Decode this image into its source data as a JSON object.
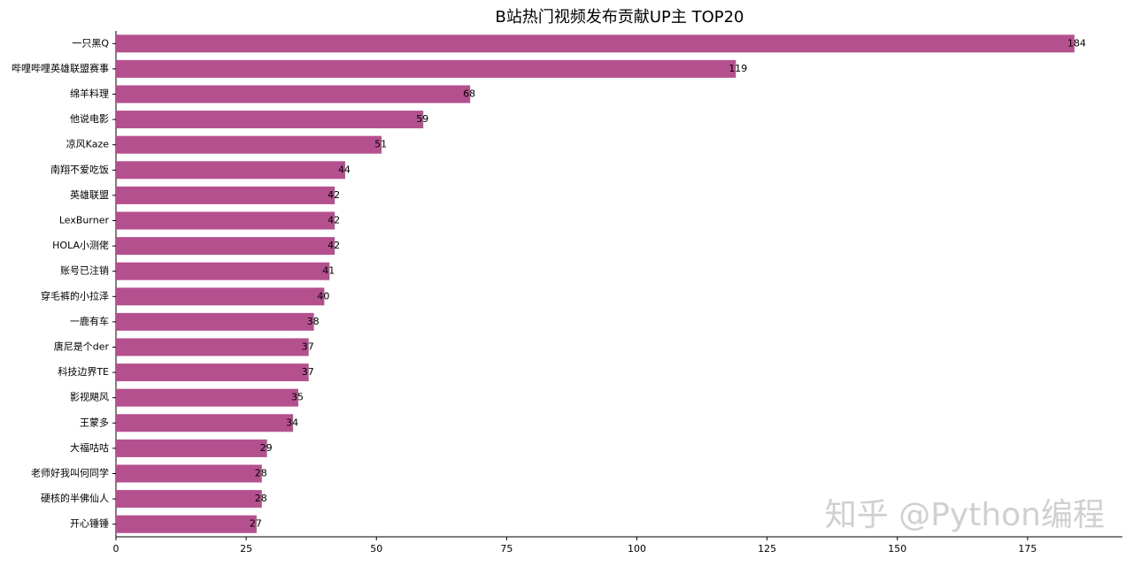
{
  "chart_data": {
    "type": "barh",
    "title": "B站热门视频发布贡献UP主 TOP20",
    "categories": [
      "一只黑Q",
      "哔哩哔哩英雄联盟赛事",
      "绵羊料理",
      "他说电影",
      "凉风Kaze",
      "南翔不爱吃饭",
      "英雄联盟",
      "LexBurner",
      "HOLA小测佬",
      "账号已注销",
      "穿毛裤的小拉泽",
      "一鹿有车",
      "唐尼是个der",
      "科技边界TE",
      "影视飓风",
      "王蒙多",
      "大福咕咕",
      "老师好我叫何同学",
      "硬核的半佛仙人",
      "开心锤锤"
    ],
    "values": [
      184,
      119,
      68,
      59,
      51,
      44,
      42,
      42,
      42,
      41,
      40,
      38,
      37,
      37,
      35,
      34,
      29,
      28,
      28,
      27
    ],
    "color": "#b5508f",
    "xlim": [
      0,
      193.2
    ],
    "xticks": [
      0,
      25,
      50,
      75,
      100,
      125,
      150,
      175
    ],
    "watermark": "知乎 @Python编程"
  }
}
